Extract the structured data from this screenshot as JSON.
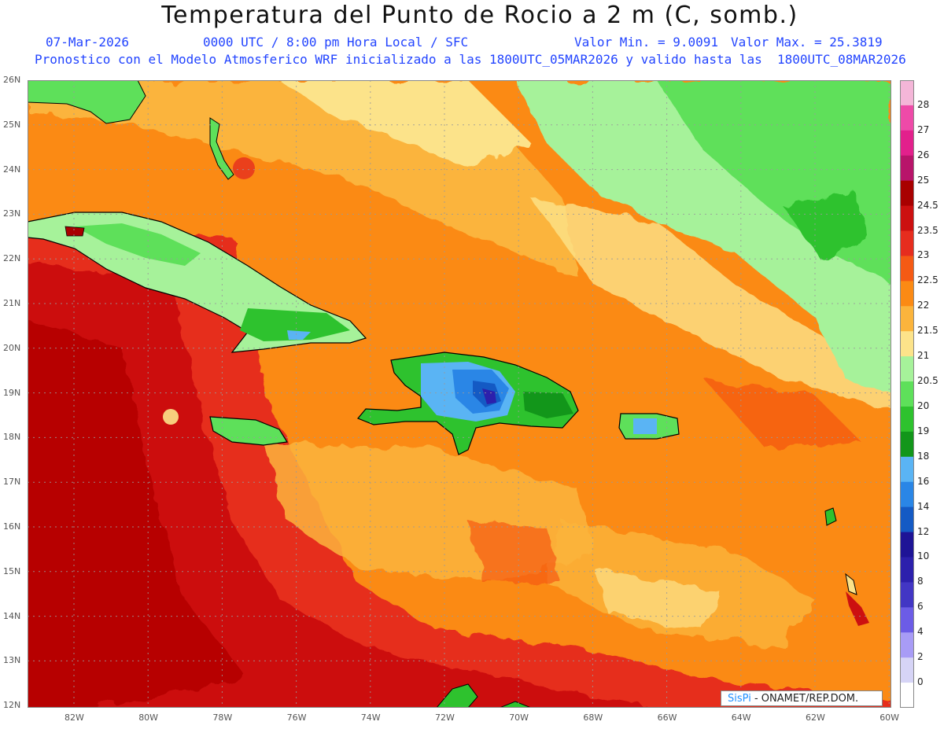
{
  "header": {
    "title": "Temperatura del Punto de Rocio a 2 m (C, somb.)",
    "date": "07-Mar-2026",
    "time": "0000 UTC / 8:00 pm Hora Local / SFC",
    "vmin": "Valor Min. = 9.0091",
    "vmax": "Valor Max. = 25.3819",
    "model": "Pronostico con el Modelo Atmosferico WRF inicializado a las 1800UTC_05MAR2026 y valido hasta las  1800UTC_08MAR2026"
  },
  "axes": {
    "lat": [
      "26N",
      "25N",
      "24N",
      "23N",
      "22N",
      "21N",
      "20N",
      "19N",
      "18N",
      "17N",
      "16N",
      "15N",
      "14N",
      "13N",
      "12N"
    ],
    "lon": [
      "82W",
      "80W",
      "78W",
      "76W",
      "74W",
      "72W",
      "70W",
      "68W",
      "66W",
      "64W",
      "62W",
      "60W"
    ]
  },
  "colorbar": [
    {
      "label": "28",
      "color": "#f4b6d8"
    },
    {
      "label": "27",
      "color": "#ee4aa8"
    },
    {
      "label": "26",
      "color": "#e2208c"
    },
    {
      "label": "25",
      "color": "#b8146a"
    },
    {
      "label": "24.5",
      "color": "#a80000"
    },
    {
      "label": "23.5",
      "color": "#cc1010"
    },
    {
      "label": "23",
      "color": "#e62d1e"
    },
    {
      "label": "22.5",
      "color": "#f55a14"
    },
    {
      "label": "22",
      "color": "#fb8a14"
    },
    {
      "label": "21.5",
      "color": "#fbb43c"
    },
    {
      "label": "21",
      "color": "#fce38a"
    },
    {
      "label": "20.5",
      "color": "#a6f29a"
    },
    {
      "label": "20",
      "color": "#5ee05a"
    },
    {
      "label": "19",
      "color": "#2ec22e"
    },
    {
      "label": "18",
      "color": "#12961a"
    },
    {
      "label": "16",
      "color": "#5ab4f4"
    },
    {
      "label": "14",
      "color": "#2a86e6"
    },
    {
      "label": "12",
      "color": "#145ac4"
    },
    {
      "label": "10",
      "color": "#1e1496"
    },
    {
      "label": "8",
      "color": "#2c20ac"
    },
    {
      "label": "6",
      "color": "#4236c4"
    },
    {
      "label": "4",
      "color": "#6c5ce6"
    },
    {
      "label": "2",
      "color": "#a89cf6"
    },
    {
      "label": "0",
      "color": "#d6d4f6"
    }
  ],
  "credit": {
    "logo": "SisPi",
    "text": " - ONAMET/REP.DOM."
  }
}
